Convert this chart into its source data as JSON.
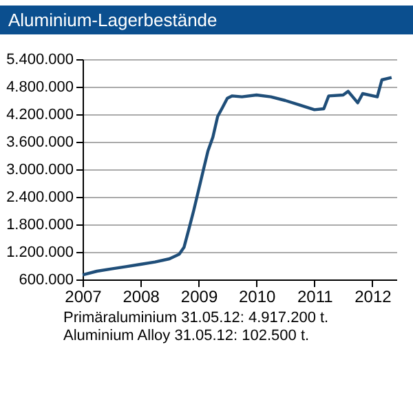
{
  "chart_data": {
    "type": "line",
    "title": "Aluminium-Lagerbestände",
    "annotations": [
      "Primäraluminium 31.05.12: 4.917.200 t.",
      "Aluminium Alloy 31.05.12: 102.500 t."
    ],
    "x": [
      "2007-01-01",
      "2007-04-01",
      "2007-07-01",
      "2007-10-01",
      "2008-01-01",
      "2008-04-01",
      "2008-07-01",
      "2008-09-01",
      "2008-10-01",
      "2008-11-01",
      "2008-12-01",
      "2009-01-01",
      "2009-02-01",
      "2009-03-01",
      "2009-04-01",
      "2009-05-01",
      "2009-06-01",
      "2009-07-01",
      "2009-08-01",
      "2009-10-01",
      "2010-01-01",
      "2010-04-01",
      "2010-07-01",
      "2010-10-01",
      "2011-01-01",
      "2011-03-01",
      "2011-04-01",
      "2011-07-01",
      "2011-08-01",
      "2011-10-01",
      "2011-11-01",
      "2012-02-01",
      "2012-03-01",
      "2012-05-01"
    ],
    "series": [
      {
        "color": "#1f4e79",
        "values": [
          700000,
          780000,
          830000,
          880000,
          930000,
          980000,
          1050000,
          1150000,
          1300000,
          1700000,
          2100000,
          2550000,
          3000000,
          3400000,
          3700000,
          4150000,
          4350000,
          4550000,
          4600000,
          4580000,
          4620000,
          4580000,
          4500000,
          4400000,
          4300000,
          4320000,
          4600000,
          4620000,
          4700000,
          4450000,
          4650000,
          4580000,
          4950000,
          5000000
        ]
      }
    ],
    "xlim": [
      "2007-01-01",
      "2012-06-01"
    ],
    "xticks": [
      {
        "value": "2007-01-01",
        "label": "2007"
      },
      {
        "value": "2008-01-01",
        "label": "2008"
      },
      {
        "value": "2009-01-01",
        "label": "2009"
      },
      {
        "value": "2010-01-01",
        "label": "2010"
      },
      {
        "value": "2011-01-01",
        "label": "2011"
      },
      {
        "value": "2012-01-01",
        "label": "2012"
      }
    ],
    "ylim": [
      600000,
      5400000
    ],
    "yticks": [
      {
        "value": 600000,
        "label": "600.000"
      },
      {
        "value": 1200000,
        "label": "1.200.000"
      },
      {
        "value": 1800000,
        "label": "1.800.000"
      },
      {
        "value": 2400000,
        "label": "2.400.000"
      },
      {
        "value": 3000000,
        "label": "3.000.000"
      },
      {
        "value": 3600000,
        "label": "3.600.000"
      },
      {
        "value": 4200000,
        "label": "4.200.000"
      },
      {
        "value": 4800000,
        "label": "4.800.000"
      },
      {
        "value": 5400000,
        "label": "5.400.000"
      }
    ],
    "grid": "y",
    "marker": "none",
    "line_style": "solid"
  }
}
